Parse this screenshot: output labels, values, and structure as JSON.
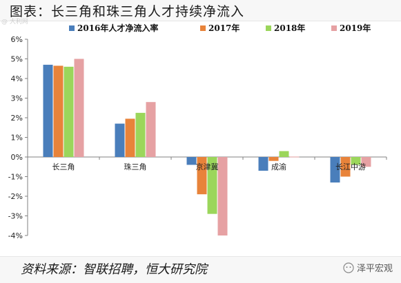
{
  "page": {
    "title": "图表：长三角和珠三角人才持续净流入",
    "source": "资料来源：智联招聘，恒大研究院",
    "brand": "泽平宏观",
    "corner_mark": "@ 大利网"
  },
  "chart_data": {
    "type": "bar",
    "categories": [
      "长三角",
      "珠三角",
      "京津冀",
      "成渝",
      "长江中游"
    ],
    "series": [
      {
        "name": "2016年人才净流入率",
        "color": "#4a7ebb",
        "values": [
          4.7,
          1.7,
          -0.4,
          -0.7,
          -1.3
        ]
      },
      {
        "name": "2017年",
        "color": "#e8833a",
        "values": [
          4.65,
          1.95,
          -1.9,
          -0.2,
          -1.0
        ]
      },
      {
        "name": "2018年",
        "color": "#9bd65b",
        "values": [
          4.6,
          2.25,
          -2.9,
          0.3,
          -0.4
        ]
      },
      {
        "name": "2019年",
        "color": "#e6a1a3",
        "values": [
          5.0,
          2.8,
          -4.0,
          0.02,
          -0.5
        ]
      }
    ],
    "yticks": [
      "-4%",
      "-3%",
      "-2%",
      "-1%",
      "0%",
      "1%",
      "2%",
      "3%",
      "4%",
      "5%",
      "6%"
    ],
    "ylim": [
      -4,
      6
    ],
    "legend_position": "top",
    "grid": false
  }
}
